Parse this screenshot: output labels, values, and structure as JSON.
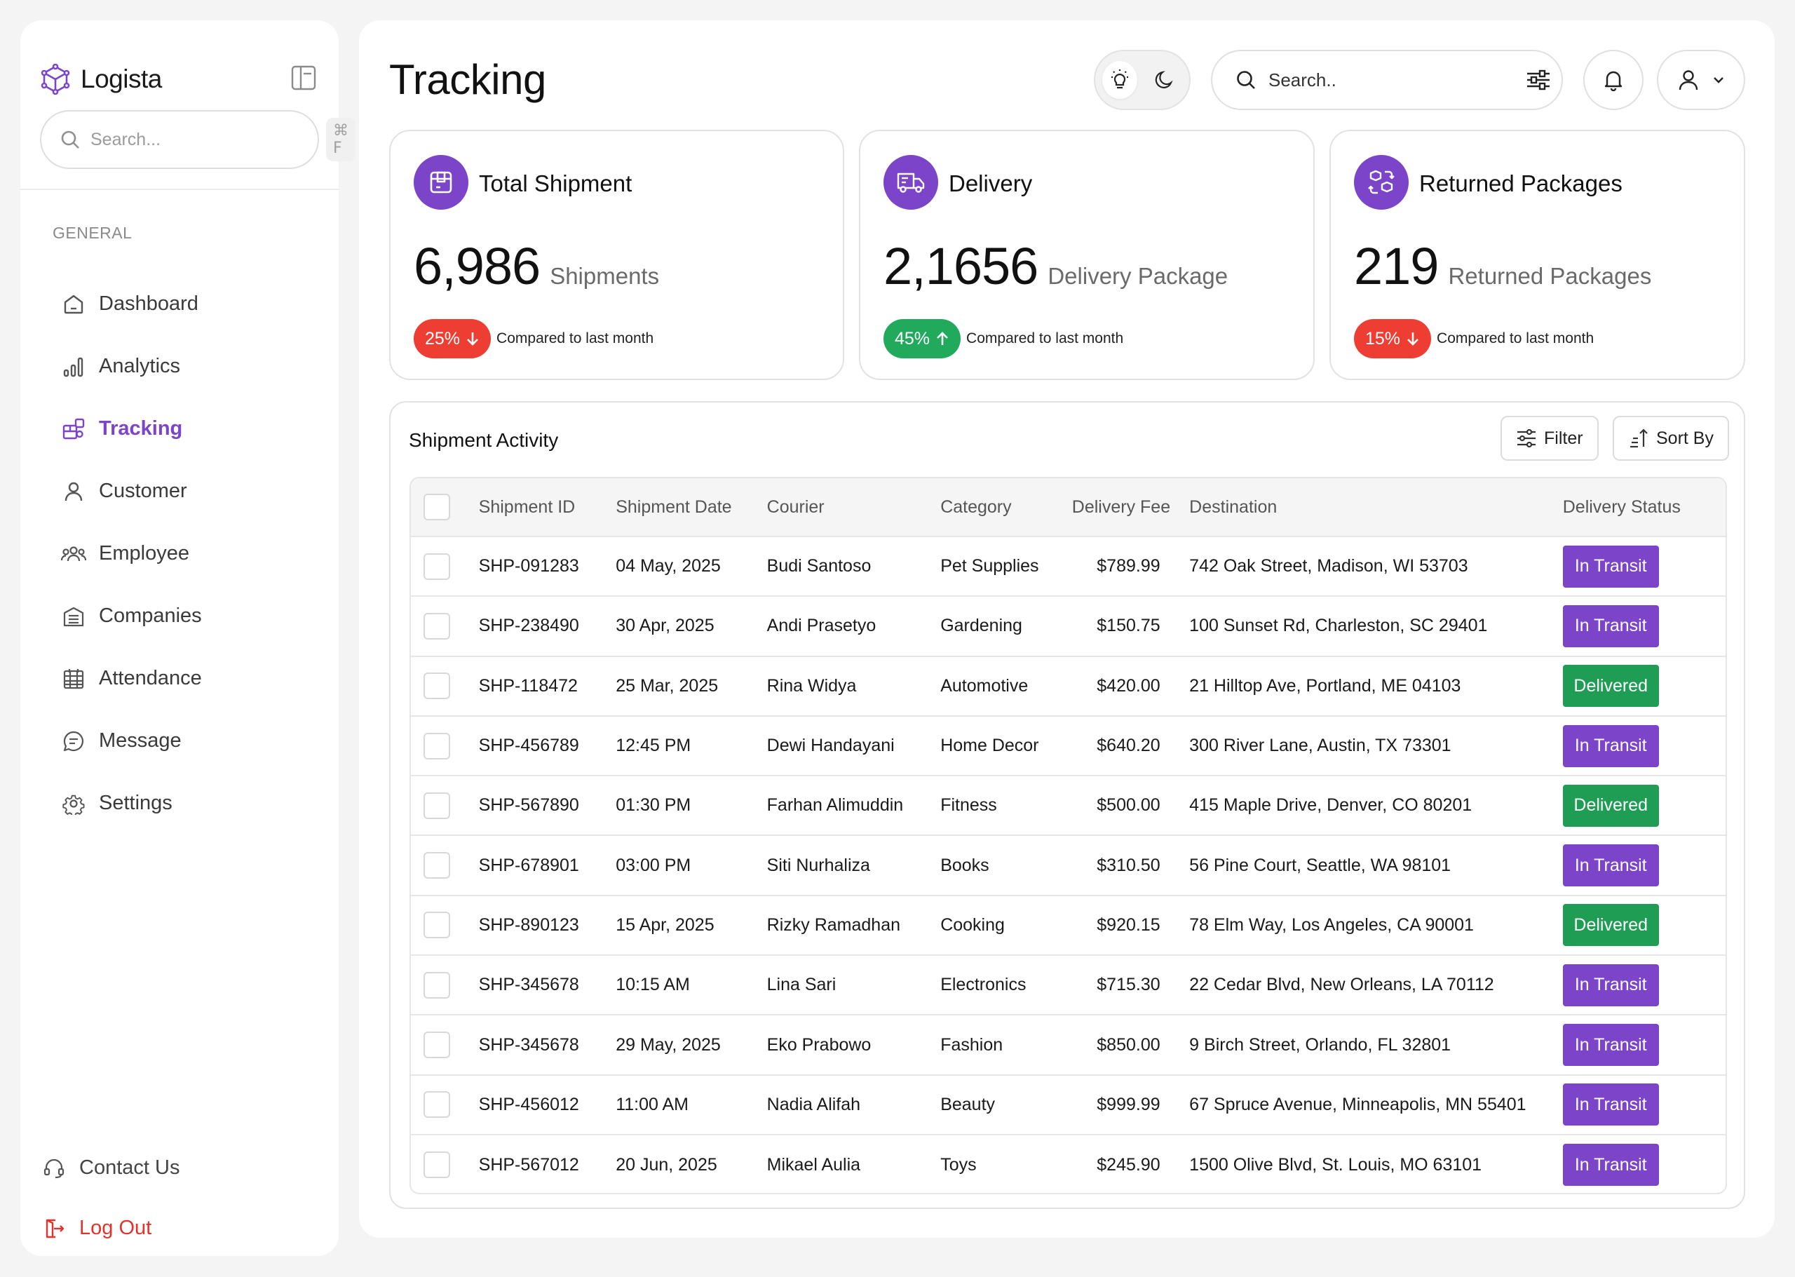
{
  "brand": {
    "name": "Logista"
  },
  "sidebar": {
    "search_placeholder": "Search...",
    "search_shortcut": "⌘ F",
    "section_label": "GENERAL",
    "items": [
      {
        "label": "Dashboard",
        "icon": "home-icon",
        "active": false
      },
      {
        "label": "Analytics",
        "icon": "analytics-icon",
        "active": false
      },
      {
        "label": "Tracking",
        "icon": "tracking-icon",
        "active": true
      },
      {
        "label": "Customer",
        "icon": "user-icon",
        "active": false
      },
      {
        "label": "Employee",
        "icon": "users-icon",
        "active": false
      },
      {
        "label": "Companies",
        "icon": "building-icon",
        "active": false
      },
      {
        "label": "Attendance",
        "icon": "calendar-icon",
        "active": false
      },
      {
        "label": "Message",
        "icon": "message-icon",
        "active": false
      },
      {
        "label": "Settings",
        "icon": "gear-icon",
        "active": false
      }
    ],
    "contact": "Contact Us",
    "logout": "Log Out"
  },
  "header": {
    "title": "Tracking",
    "search_placeholder": "Search.."
  },
  "stats": [
    {
      "title": "Total Shipment",
      "value": "6,986",
      "unit": "Shipments",
      "change": "25%",
      "direction": "down",
      "note": "Compared to last month",
      "icon": "box-icon"
    },
    {
      "title": "Delivery",
      "value": "2,1656",
      "unit": "Delivery Package",
      "change": "45%",
      "direction": "up",
      "note": "Compared to last month",
      "icon": "truck-icon"
    },
    {
      "title": "Returned Packages",
      "value": "219",
      "unit": "Returned Packages",
      "change": "15%",
      "direction": "down",
      "note": "Compared to last month",
      "icon": "return-icon"
    }
  ],
  "activity": {
    "title": "Shipment Activity",
    "filter_label": "Filter",
    "sort_label": "Sort By",
    "columns": [
      "Shipment ID",
      "Shipment Date",
      "Courier",
      "Category",
      "Delivery Fee",
      "Destination",
      "Delivery Status"
    ],
    "rows": [
      {
        "id": "SHP-091283",
        "date": "04 May, 2025",
        "courier": "Budi Santoso",
        "category": "Pet Supplies",
        "fee": "$789.99",
        "destination": "742 Oak Street, Madison, WI 53703",
        "status": "In Transit"
      },
      {
        "id": "SHP-238490",
        "date": "30 Apr, 2025",
        "courier": "Andi Prasetyo",
        "category": "Gardening",
        "fee": "$150.75",
        "destination": "100 Sunset Rd, Charleston, SC 29401",
        "status": "In Transit"
      },
      {
        "id": "SHP-118472",
        "date": "25 Mar, 2025",
        "courier": "Rina Widya",
        "category": "Automotive",
        "fee": "$420.00",
        "destination": "21 Hilltop Ave, Portland, ME 04103",
        "status": "Delivered"
      },
      {
        "id": "SHP-456789",
        "date": "12:45 PM",
        "courier": "Dewi Handayani",
        "category": "Home Decor",
        "fee": "$640.20",
        "destination": "300 River Lane, Austin, TX 73301",
        "status": "In Transit"
      },
      {
        "id": "SHP-567890",
        "date": "01:30 PM",
        "courier": "Farhan Alimuddin",
        "category": "Fitness",
        "fee": "$500.00",
        "destination": "415 Maple Drive, Denver, CO 80201",
        "status": "Delivered"
      },
      {
        "id": "SHP-678901",
        "date": "03:00 PM",
        "courier": "Siti Nurhaliza",
        "category": "Books",
        "fee": "$310.50",
        "destination": "56 Pine Court, Seattle, WA 98101",
        "status": "In Transit"
      },
      {
        "id": "SHP-890123",
        "date": "15 Apr, 2025",
        "courier": "Rizky Ramadhan",
        "category": "Cooking",
        "fee": "$920.15",
        "destination": "78 Elm Way, Los Angeles, CA 90001",
        "status": "Delivered"
      },
      {
        "id": "SHP-345678",
        "date": "10:15 AM",
        "courier": "Lina Sari",
        "category": "Electronics",
        "fee": "$715.30",
        "destination": "22 Cedar Blvd, New Orleans, LA 70112",
        "status": "In Transit"
      },
      {
        "id": "SHP-345678",
        "date": "29 May, 2025",
        "courier": "Eko Prabowo",
        "category": "Fashion",
        "fee": "$850.00",
        "destination": "9 Birch Street, Orlando, FL 32801",
        "status": "In Transit"
      },
      {
        "id": "SHP-456012",
        "date": "11:00 AM",
        "courier": "Nadia Alifah",
        "category": "Beauty",
        "fee": "$999.99",
        "destination": "67 Spruce Avenue, Minneapolis, MN 55401",
        "status": "In Transit"
      },
      {
        "id": "SHP-567012",
        "date": "20 Jun, 2025",
        "courier": "Mikael Aulia",
        "category": "Toys",
        "fee": "$245.90",
        "destination": "1500 Olive Blvd, St. Louis, MO 63101",
        "status": "In Transit"
      }
    ]
  },
  "colors": {
    "accent": "#7b44c9",
    "in_transit": "#7b44c9",
    "delivered": "#1f9d55",
    "trend_down": "#ee3d33",
    "trend_up": "#21a95c",
    "logout": "#e5322b"
  }
}
